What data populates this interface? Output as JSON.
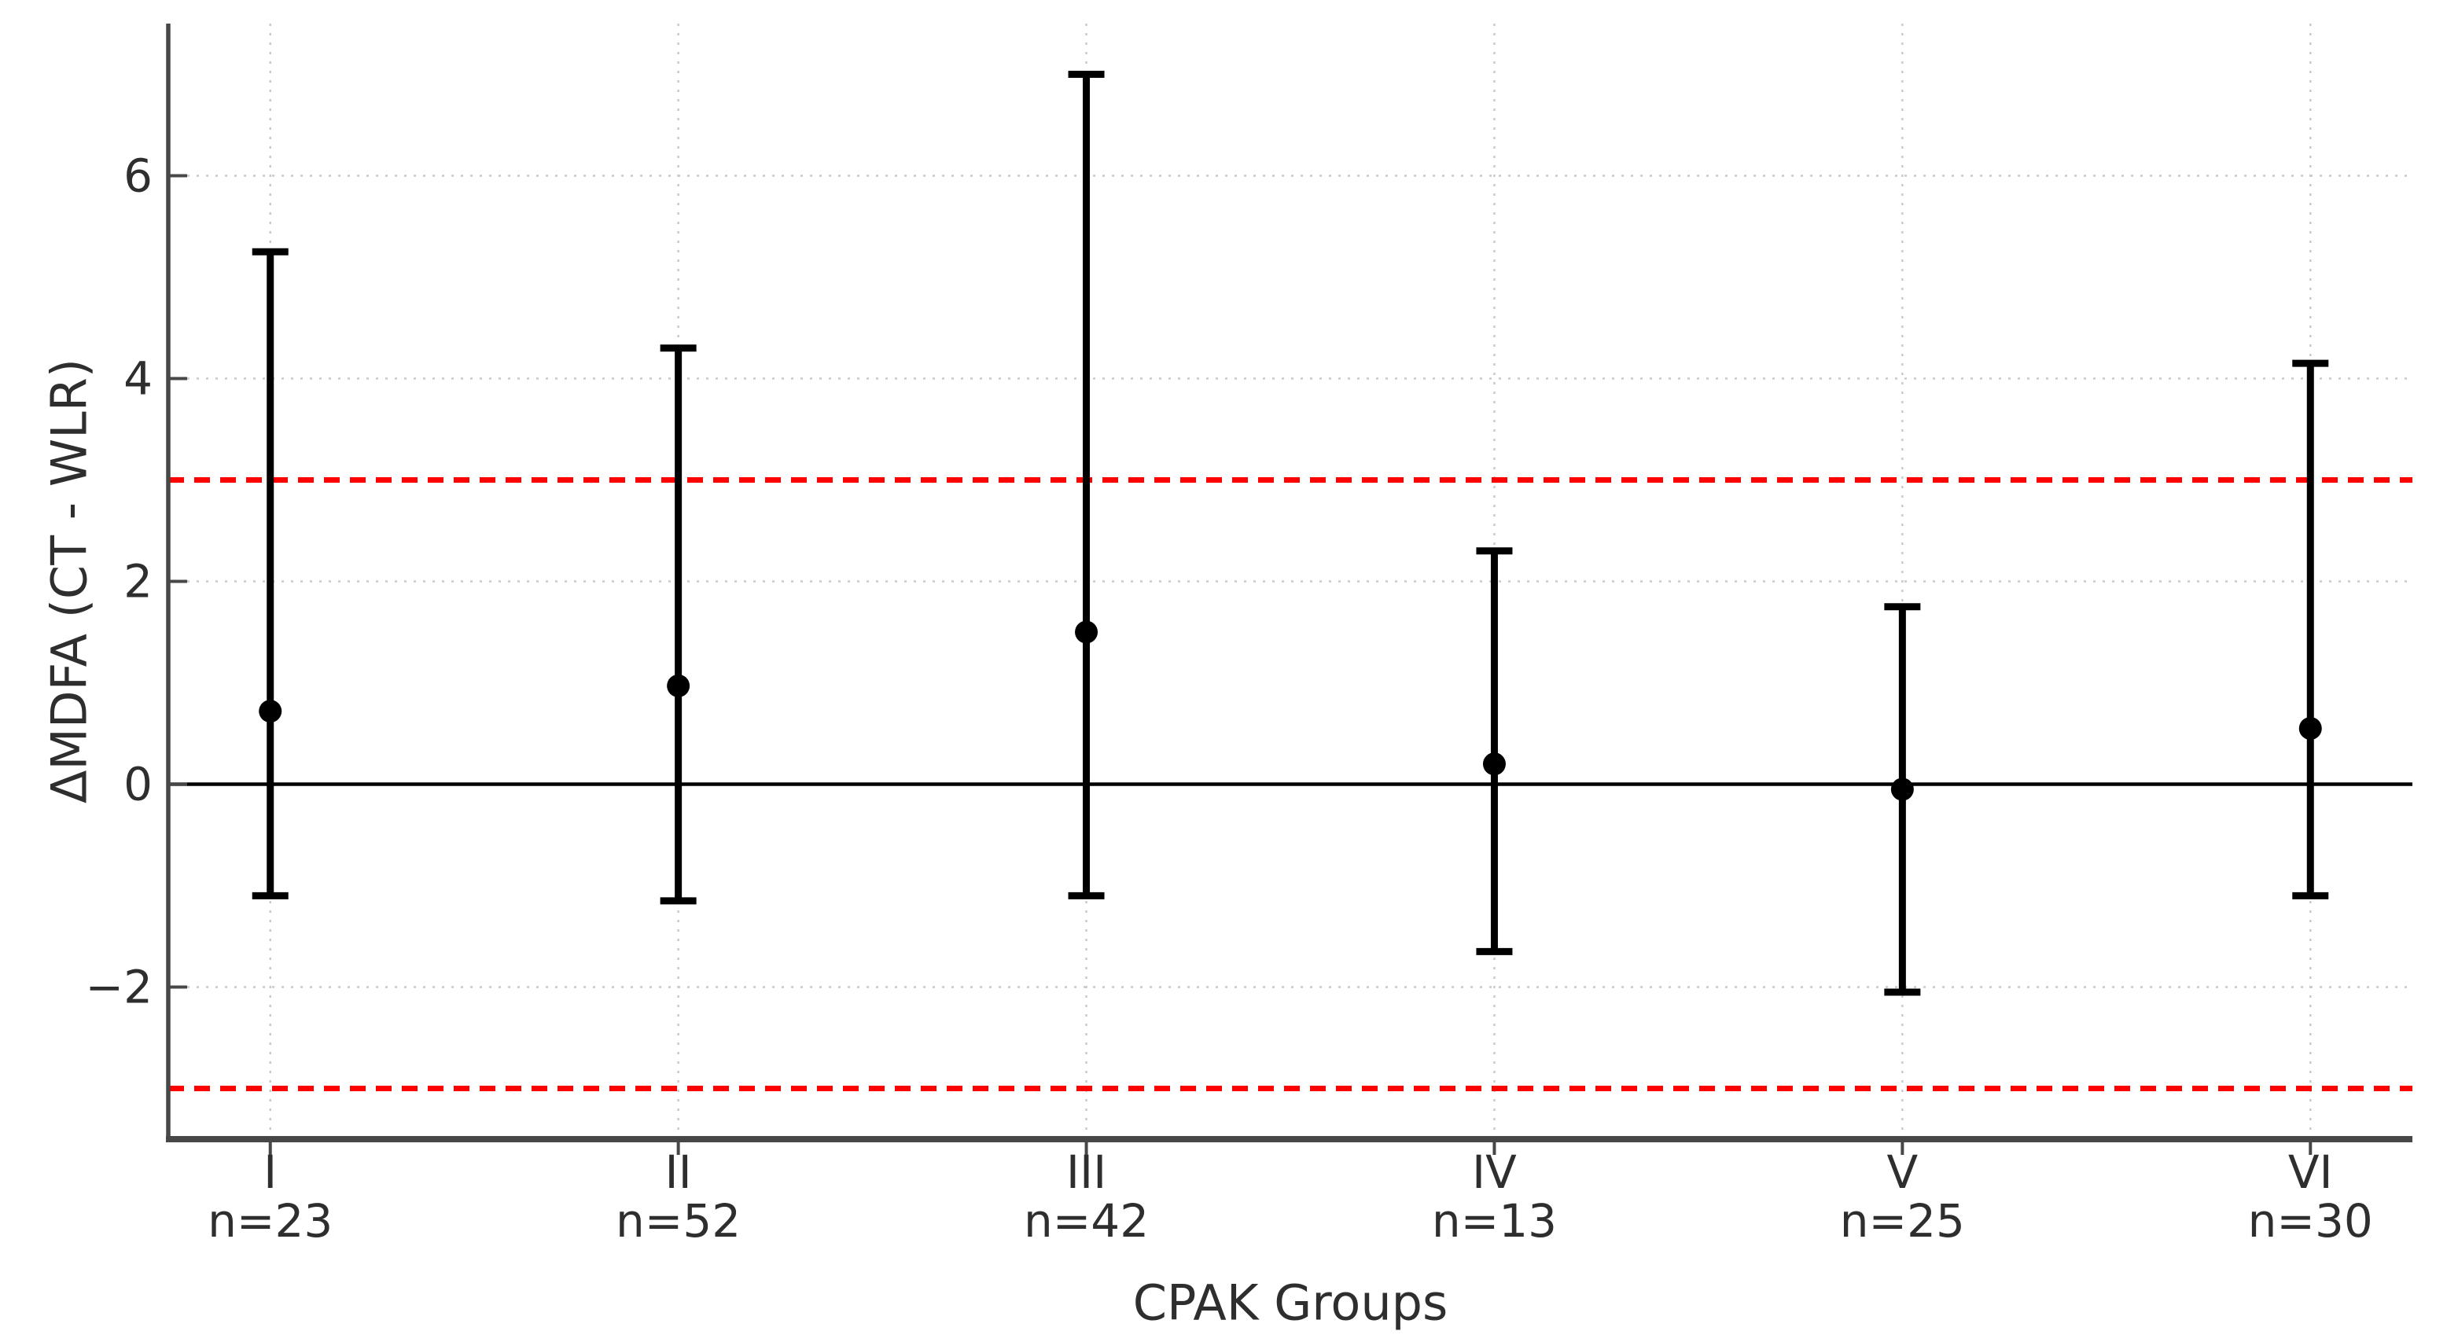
{
  "chart_data": {
    "type": "errorbar",
    "title": "",
    "xlabel": "CPAK Groups",
    "ylabel": "ΔMDFA (CT - WLR)",
    "categories": [
      "I",
      "II",
      "III",
      "IV",
      "V",
      "VI"
    ],
    "sample_sizes": [
      "n=23",
      "n=52",
      "n=42",
      "n=13",
      "n=25",
      "n=30"
    ],
    "series": [
      {
        "center": [
          0.72,
          0.97,
          1.5,
          0.2,
          -0.05,
          0.55
        ],
        "upper": [
          5.25,
          4.3,
          7.0,
          2.3,
          1.75,
          4.15
        ],
        "lower": [
          -1.1,
          -1.15,
          -1.1,
          -1.65,
          -2.05,
          -1.1
        ]
      }
    ],
    "yticks": [
      -2,
      0,
      2,
      4,
      6
    ],
    "ytick_labels": [
      "−2",
      "0",
      "2",
      "4",
      "6"
    ],
    "ylim": [
      -3.5,
      7.5
    ],
    "grid": true,
    "legend_position": "none",
    "reference_lines": [
      {
        "y": 3,
        "style": "dashed",
        "color": "#ff0000"
      },
      {
        "y": -3,
        "style": "dashed",
        "color": "#ff0000"
      },
      {
        "y": 0,
        "style": "solid",
        "color": "#000000"
      }
    ]
  },
  "style": {
    "background": "#ffffff",
    "errorbar_color": "#000000",
    "marker_color": "#000000",
    "grid_color": "#c9c9c9",
    "spine_color": "#474747",
    "tick_color": "#474747",
    "text_color": "#2e2e2e",
    "reference_red": "#ff0000"
  }
}
